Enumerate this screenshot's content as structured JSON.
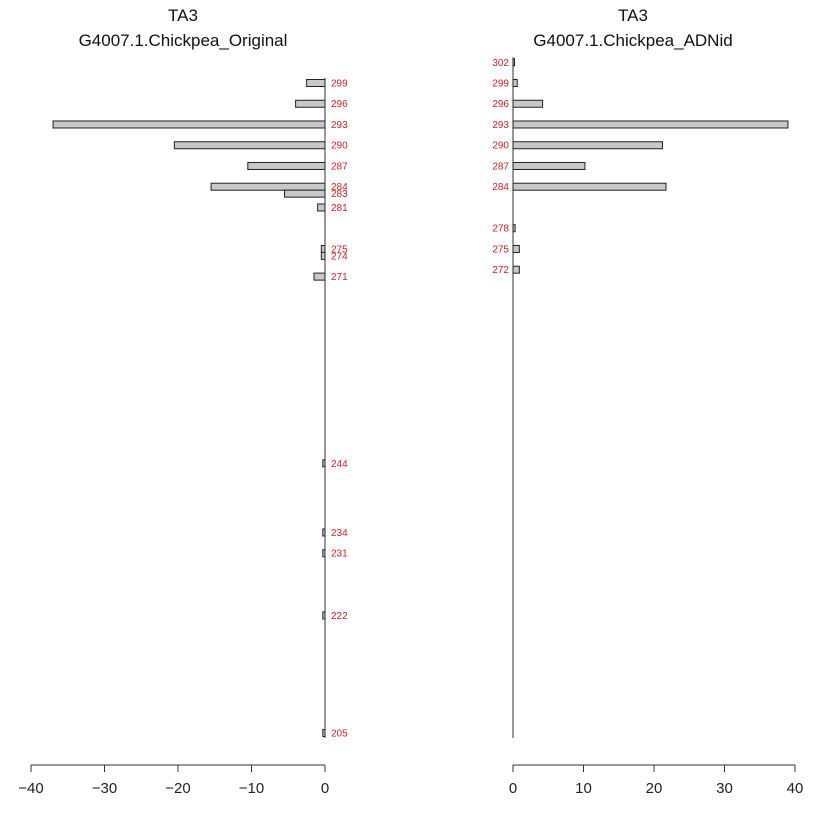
{
  "chart_data": [
    {
      "type": "bar",
      "orientation": "horizontal",
      "direction": "left",
      "title": "TA3",
      "subtitle": "G4007.1.Chickpea_Original",
      "categories": [
        "299",
        "296",
        "293",
        "290",
        "287",
        "284",
        "283",
        "281",
        "275",
        "274",
        "271",
        "244",
        "234",
        "231",
        "222",
        "205"
      ],
      "positions": [
        299,
        296,
        293,
        290,
        287,
        284,
        283,
        281,
        275,
        274,
        271,
        244,
        234,
        231,
        222,
        205
      ],
      "values": [
        -2.5,
        -4,
        -37,
        -20.5,
        -10.5,
        -15.5,
        -5.5,
        -1,
        -0.5,
        -0.5,
        -1.5,
        -0.3,
        -0.3,
        -0.3,
        -0.3,
        -0.3
      ],
      "label_color": "#d42020",
      "bar_color": "#c8c8c8",
      "xlim": [
        -40,
        0
      ],
      "xticks": [
        "-40",
        "-30",
        "-20",
        "-10",
        "0"
      ],
      "yrange": [
        205,
        299
      ]
    },
    {
      "type": "bar",
      "orientation": "horizontal",
      "direction": "right",
      "title": "TA3",
      "subtitle": "G4007.1.Chickpea_ADNid",
      "categories": [
        "302",
        "299",
        "296",
        "293",
        "290",
        "287",
        "284",
        "278",
        "275",
        "272"
      ],
      "positions": [
        302,
        299,
        296,
        293,
        290,
        287,
        284,
        278,
        275,
        272
      ],
      "values": [
        0.2,
        0.6,
        4.2,
        39,
        21.2,
        10.2,
        21.7,
        0.3,
        0.9,
        0.9
      ],
      "label_color": "#d42020",
      "bar_color": "#c8c8c8",
      "xlim": [
        0,
        40
      ],
      "xticks": [
        "0",
        "10",
        "20",
        "30",
        "40"
      ],
      "yrange": [
        205,
        299
      ]
    }
  ]
}
